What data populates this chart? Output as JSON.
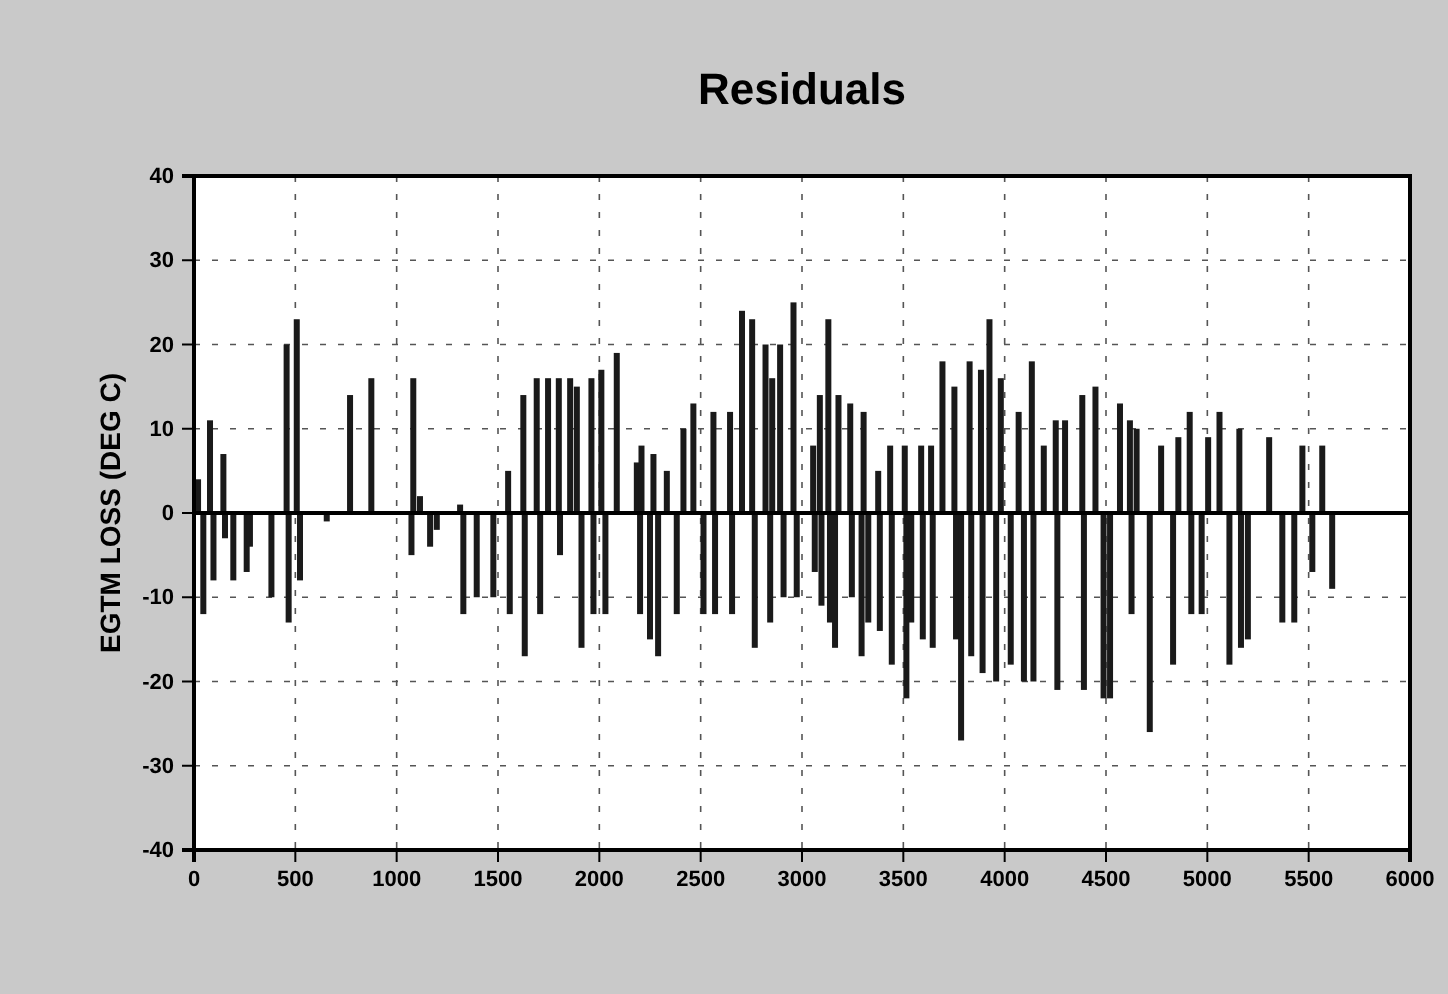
{
  "chart_data": {
    "type": "bar",
    "title": "Residuals",
    "ylabel": "EGTM LOSS (DEG C)",
    "x": [
      20,
      46,
      79,
      96,
      145,
      153,
      194,
      260,
      276,
      382,
      457,
      467,
      507,
      523,
      655,
      770,
      875,
      1073,
      1082,
      1115,
      1165,
      1198,
      1313,
      1329,
      1395,
      1477,
      1550,
      1558,
      1625,
      1632,
      1691,
      1708,
      1747,
      1800,
      1806,
      1856,
      1889,
      1912,
      1961,
      1971,
      2010,
      2030,
      2086,
      2185,
      2201,
      2208,
      2250,
      2267,
      2290,
      2333,
      2382,
      2415,
      2464,
      2514,
      2563,
      2571,
      2645,
      2655,
      2704,
      2754,
      2767,
      2820,
      2843,
      2853,
      2892,
      2909,
      2958,
      2974,
      3055,
      3063,
      3088,
      3096,
      3130,
      3138,
      3163,
      3180,
      3238,
      3246,
      3294,
      3304,
      3327,
      3376,
      3384,
      3435,
      3443,
      3507,
      3515,
      3539,
      3588,
      3596,
      3637,
      3645,
      3693,
      3752,
      3760,
      3785,
      3827,
      3835,
      3883,
      3891,
      3925,
      3958,
      3981,
      4030,
      4069,
      4095,
      4134,
      4142,
      4193,
      4252,
      4260,
      4298,
      4383,
      4391,
      4448,
      4488,
      4520,
      4569,
      4618,
      4626,
      4651,
      4716,
      4772,
      4831,
      4857,
      4913,
      4921,
      4972,
      5004,
      5060,
      5109,
      5158,
      5166,
      5200,
      5305,
      5370,
      5429,
      5469,
      5518,
      5567,
      5616
    ],
    "values": [
      4,
      -12,
      11,
      -8,
      7,
      -3,
      -8,
      -7,
      -4,
      -10,
      20,
      -13,
      23,
      -8,
      -1,
      14,
      16,
      -5,
      16,
      2,
      -4,
      -2,
      1,
      -12,
      -10,
      -10,
      5,
      -12,
      14,
      -17,
      16,
      -12,
      16,
      16,
      -5,
      16,
      15,
      -16,
      16,
      -12,
      17,
      -12,
      19,
      6,
      -12,
      8,
      -15,
      7,
      -17,
      5,
      -12,
      10,
      13,
      -12,
      12,
      -12,
      12,
      -12,
      24,
      23,
      -16,
      20,
      -13,
      16,
      20,
      -10,
      25,
      -10,
      8,
      -7,
      14,
      -11,
      23,
      -13,
      -16,
      14,
      13,
      -10,
      -17,
      12,
      -13,
      5,
      -14,
      8,
      -18,
      8,
      -22,
      -13,
      8,
      -15,
      8,
      -16,
      18,
      15,
      -15,
      -27,
      18,
      -17,
      17,
      -19,
      23,
      -20,
      16,
      -18,
      12,
      -20,
      18,
      -20,
      8,
      11,
      -21,
      11,
      14,
      -21,
      15,
      -22,
      -22,
      13,
      11,
      -12,
      10,
      -26,
      8,
      -18,
      9,
      12,
      -12,
      -12,
      9,
      12,
      -18,
      10,
      -16,
      -15,
      9,
      -13,
      -13,
      8,
      -7,
      8,
      -9
    ],
    "color": "#1a1a1a",
    "xlim": [
      0,
      6000
    ],
    "xticks": [
      0,
      500,
      1000,
      1500,
      2000,
      2500,
      3000,
      3500,
      4000,
      4500,
      5000,
      5500,
      6000
    ],
    "ylim": [
      -40,
      40
    ],
    "yticks": [
      -40,
      -30,
      -20,
      -10,
      0,
      10,
      20,
      30,
      40
    ],
    "grid": true,
    "ref_lines": [
      {
        "axis": "y",
        "value": 0,
        "color": "#000000",
        "line_style": "solid"
      }
    ]
  }
}
